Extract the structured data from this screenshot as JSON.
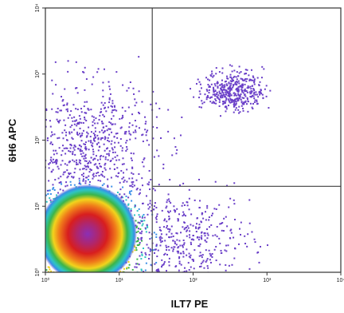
{
  "chart_data": {
    "type": "scatter",
    "style": "flow-cytometry density dot plot",
    "xlabel": "ILT7 PE",
    "ylabel": "6H6 APC",
    "x_scale": "log",
    "y_scale": "log",
    "xlim": [
      1,
      10000
    ],
    "ylim": [
      1,
      10000
    ],
    "x_ticks": [
      {
        "value": 1,
        "label": "10⁰"
      },
      {
        "value": 10,
        "label": "10¹"
      },
      {
        "value": 100,
        "label": "10²"
      },
      {
        "value": 1000,
        "label": "10³"
      },
      {
        "value": 10000,
        "label": "10⁴"
      }
    ],
    "y_ticks": [
      {
        "value": 1,
        "label": "10⁰"
      },
      {
        "value": 10,
        "label": "10¹"
      },
      {
        "value": 100,
        "label": "10²"
      },
      {
        "value": 1000,
        "label": "10³"
      },
      {
        "value": 10000,
        "label": "10⁴"
      }
    ],
    "quadrant_gates": {
      "x_vertical": 28,
      "y_horizontal": 20,
      "y_horizontal_x_start": 28
    },
    "populations": [
      {
        "name": "double-negative",
        "center_log": [
          0.55,
          0.45
        ],
        "spread_log": [
          0.45,
          0.42
        ],
        "relative_density": "very high"
      },
      {
        "name": "ILT7-low tail",
        "center_log": [
          1.9,
          0.5
        ],
        "spread_log": [
          0.45,
          0.35
        ],
        "relative_density": "low"
      },
      {
        "name": "6H6-positive smear",
        "center_log": [
          0.6,
          1.9
        ],
        "spread_log": [
          0.45,
          0.5
        ],
        "relative_density": "medium"
      },
      {
        "name": "double-positive cluster",
        "center_log": [
          2.55,
          2.75
        ],
        "spread_log": [
          0.2,
          0.15
        ],
        "relative_density": "low"
      }
    ],
    "grid": false,
    "legend": "none",
    "colors": {
      "sparse": "#6a3fc8",
      "low": "#3a8ee8",
      "medium_low": "#2ec4c4",
      "medium": "#3bb54a",
      "medium_high": "#f2d41c",
      "high": "#f07d1a",
      "very_high": "#d81e1e",
      "core": "#8b2fb5",
      "gate_line": "#555555",
      "frame": "#333333"
    }
  }
}
